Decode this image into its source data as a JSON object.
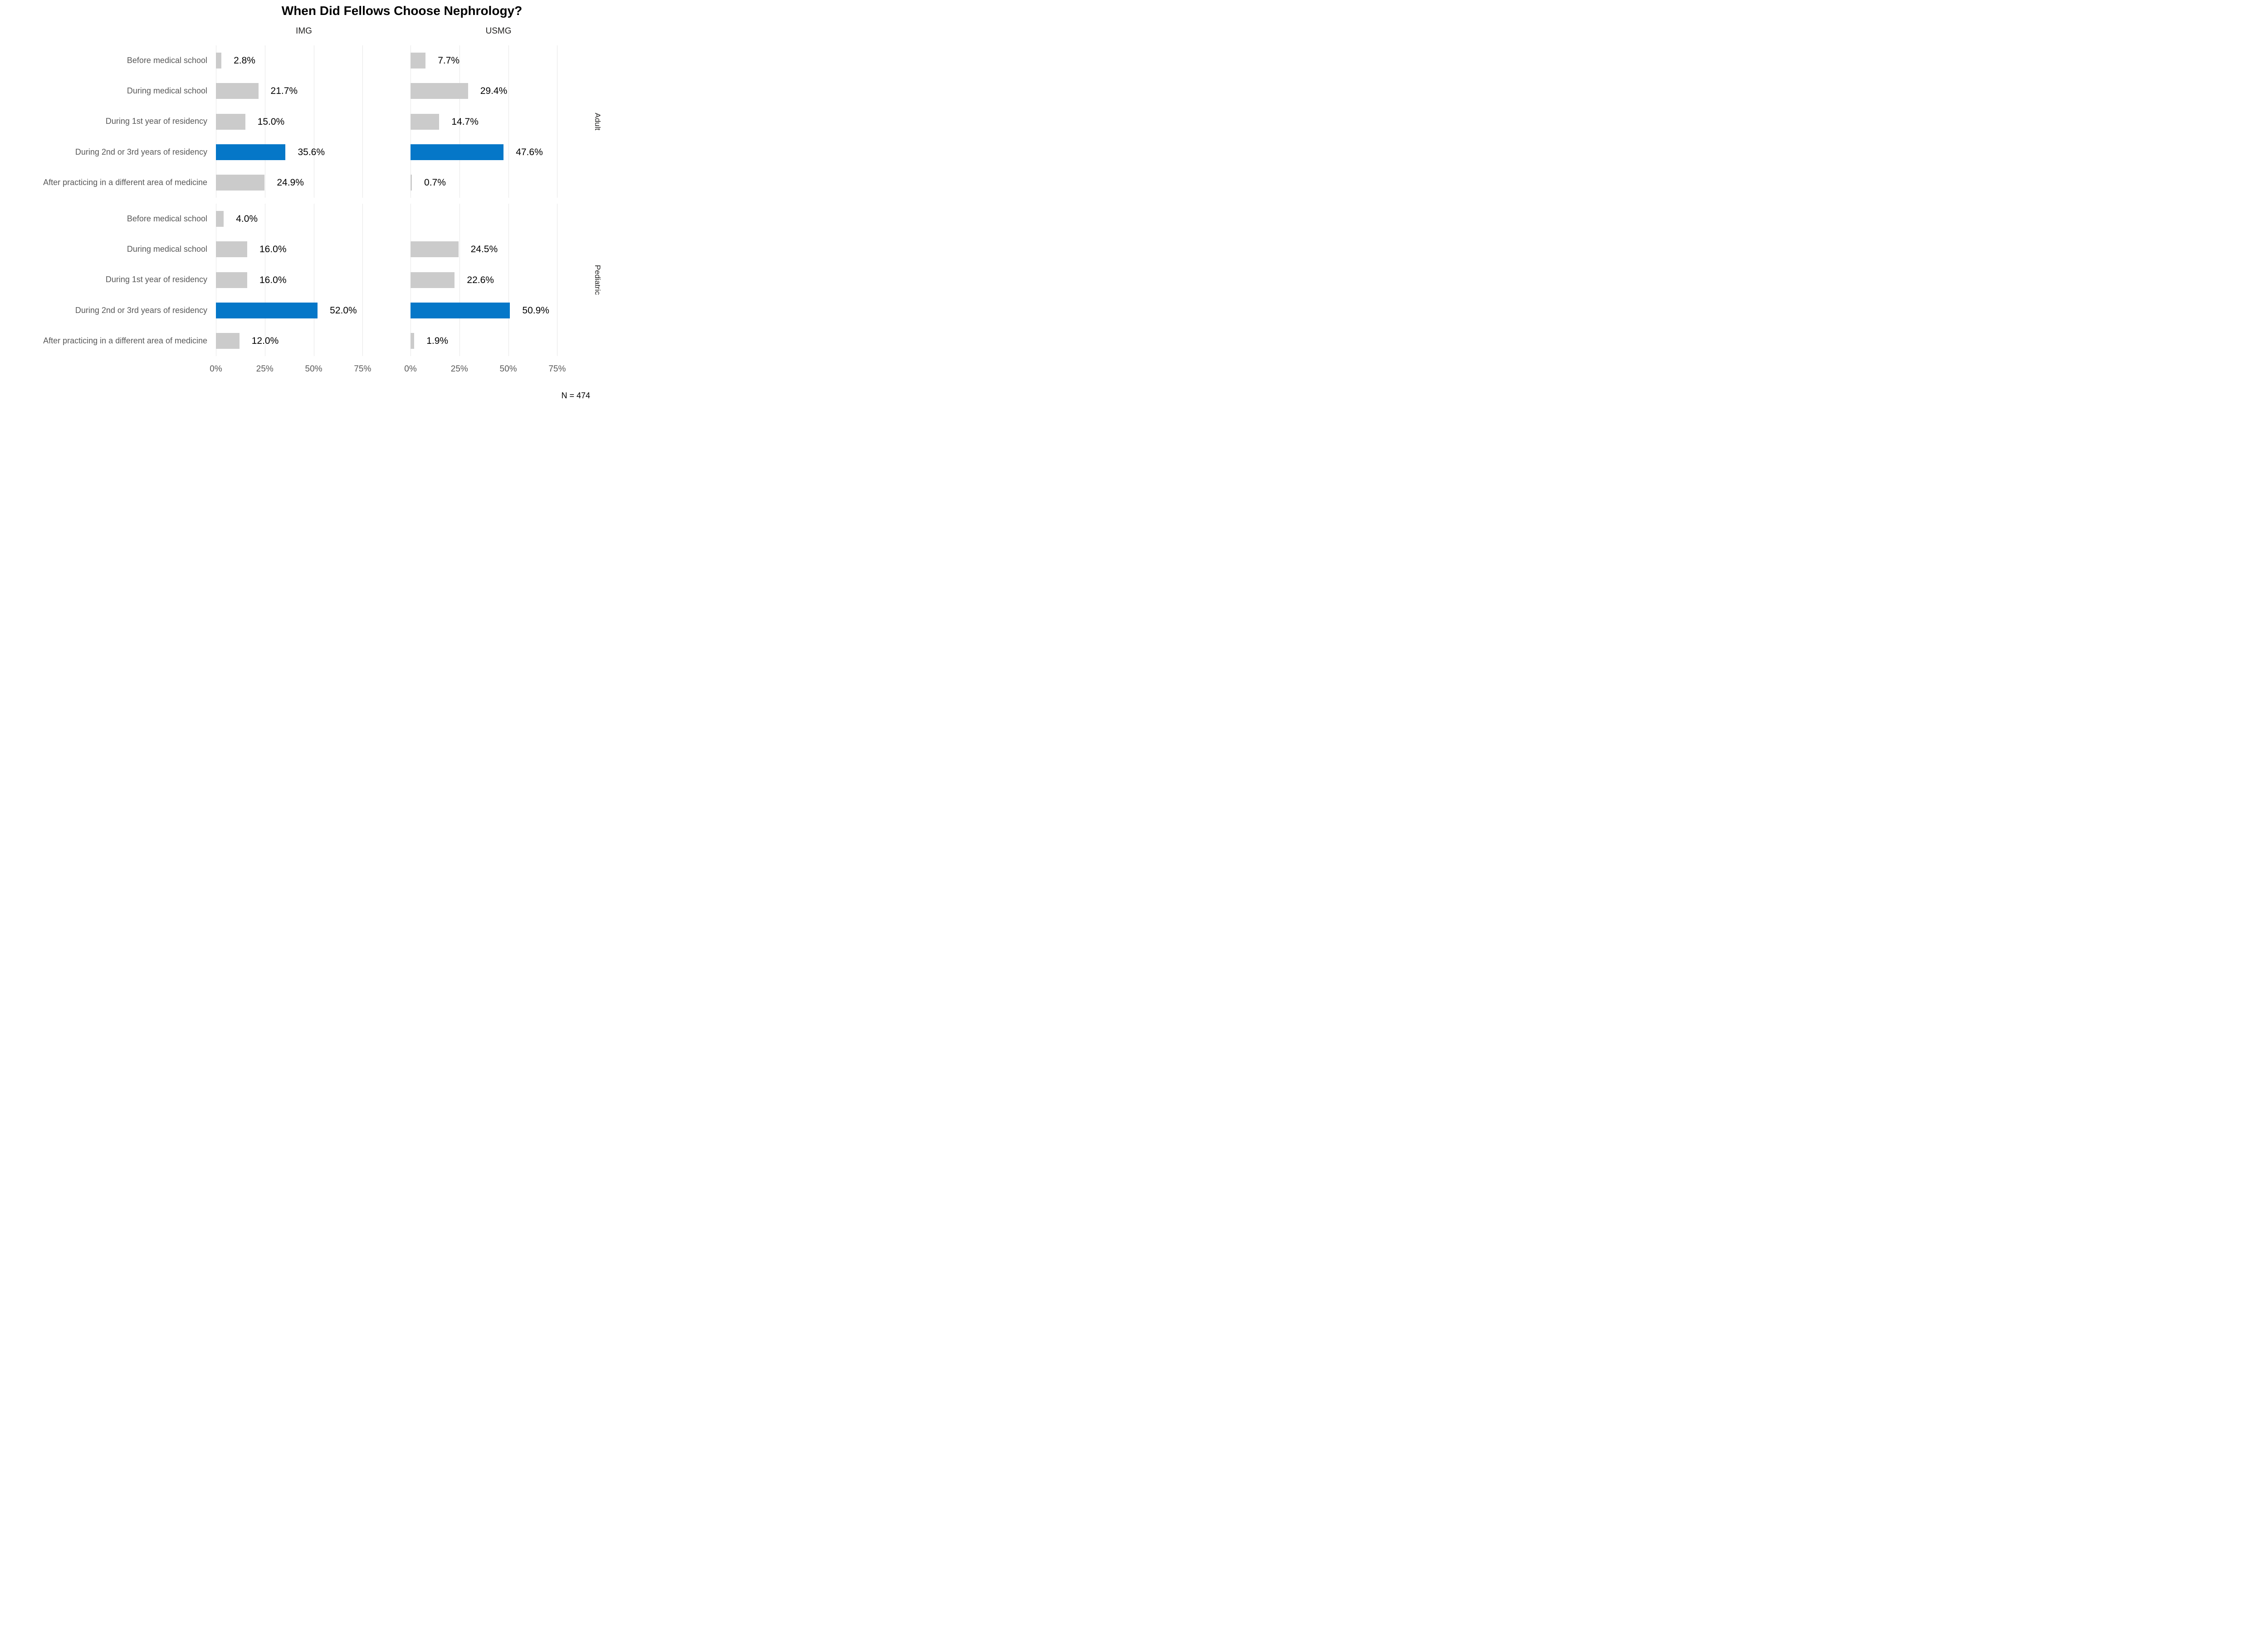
{
  "footnote": "N = 474",
  "colors": {
    "highlight_bar": "#0577C8",
    "default_bar": "#CBCBCB",
    "gridline": "#E6E6E6",
    "category_text": "#595959",
    "axis_text": "#595959",
    "value_label_text": "#000000",
    "header_text": "#252423",
    "title_text": "#000000",
    "background": "#FFFFFF"
  },
  "chart_data": {
    "type": "bar",
    "orientation": "horizontal",
    "title": "When Did Fellows Choose Nephrology?",
    "facet_columns": [
      "IMG",
      "USMG"
    ],
    "facet_rows": [
      "Adult",
      "Pediatric"
    ],
    "categories": [
      "Before medical school",
      "During medical school",
      "During 1st year of residency",
      "During 2nd or 3rd years of residency",
      "After practicing in a different area of medicine"
    ],
    "highlight_category": "During 2nd or 3rd years of residency",
    "highlight_index": 3,
    "x_axis": {
      "tick_labels": [
        "0%",
        "25%",
        "50%",
        "75%"
      ],
      "tick_values": [
        0,
        25,
        50,
        75
      ],
      "max": 90,
      "grid": true
    },
    "legend": "none",
    "panels": [
      {
        "row": "Adult",
        "column": "IMG",
        "values": [
          2.8,
          21.7,
          15.0,
          35.6,
          24.9
        ],
        "labels": [
          "2.8%",
          "21.7%",
          "15.0%",
          "35.6%",
          "24.9%"
        ]
      },
      {
        "row": "Adult",
        "column": "USMG",
        "values": [
          7.7,
          29.4,
          14.7,
          47.6,
          0.7
        ],
        "labels": [
          "7.7%",
          "29.4%",
          "14.7%",
          "47.6%",
          "0.7%"
        ]
      },
      {
        "row": "Pediatric",
        "column": "IMG",
        "values": [
          4.0,
          16.0,
          16.0,
          52.0,
          12.0
        ],
        "labels": [
          "4.0%",
          "16.0%",
          "16.0%",
          "52.0%",
          "12.0%"
        ]
      },
      {
        "row": "Pediatric",
        "column": "USMG",
        "values": [
          null,
          24.5,
          22.6,
          50.9,
          1.9
        ],
        "labels": [
          "",
          "24.5%",
          "22.6%",
          "50.9%",
          "1.9%"
        ]
      }
    ]
  }
}
